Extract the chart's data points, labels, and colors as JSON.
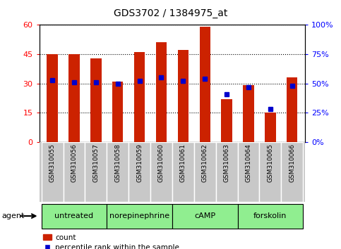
{
  "title": "GDS3702 / 1384975_at",
  "samples": [
    "GSM310055",
    "GSM310056",
    "GSM310057",
    "GSM310058",
    "GSM310059",
    "GSM310060",
    "GSM310061",
    "GSM310062",
    "GSM310063",
    "GSM310064",
    "GSM310065",
    "GSM310066"
  ],
  "count_values": [
    45.0,
    45.0,
    43.0,
    31.0,
    46.0,
    51.0,
    47.0,
    59.0,
    22.0,
    29.0,
    15.0,
    33.0
  ],
  "percentile_values": [
    53.0,
    51.0,
    51.0,
    50.0,
    52.0,
    55.0,
    52.0,
    54.0,
    41.0,
    47.0,
    28.0,
    48.0
  ],
  "groups": [
    {
      "label": "untreated",
      "start": 0,
      "end": 3
    },
    {
      "label": "norepinephrine",
      "start": 3,
      "end": 6
    },
    {
      "label": "cAMP",
      "start": 6,
      "end": 9
    },
    {
      "label": "forskolin",
      "start": 9,
      "end": 12
    }
  ],
  "group_color": "#90EE90",
  "ylim_left": [
    0,
    60
  ],
  "ylim_right": [
    0,
    100
  ],
  "yticks_left": [
    0,
    15,
    30,
    45,
    60
  ],
  "yticks_right": [
    0,
    25,
    50,
    75,
    100
  ],
  "ytick_labels_left": [
    "0",
    "15",
    "30",
    "45",
    "60"
  ],
  "ytick_labels_right": [
    "0%",
    "25%",
    "50%",
    "75%",
    "100%"
  ],
  "bar_color": "#CC2200",
  "dot_color": "#0000CC",
  "bar_width": 0.5,
  "legend_count_label": "count",
  "legend_pct_label": "percentile rank within the sample",
  "agent_label": "agent",
  "tick_area_color": "#C8C8C8"
}
